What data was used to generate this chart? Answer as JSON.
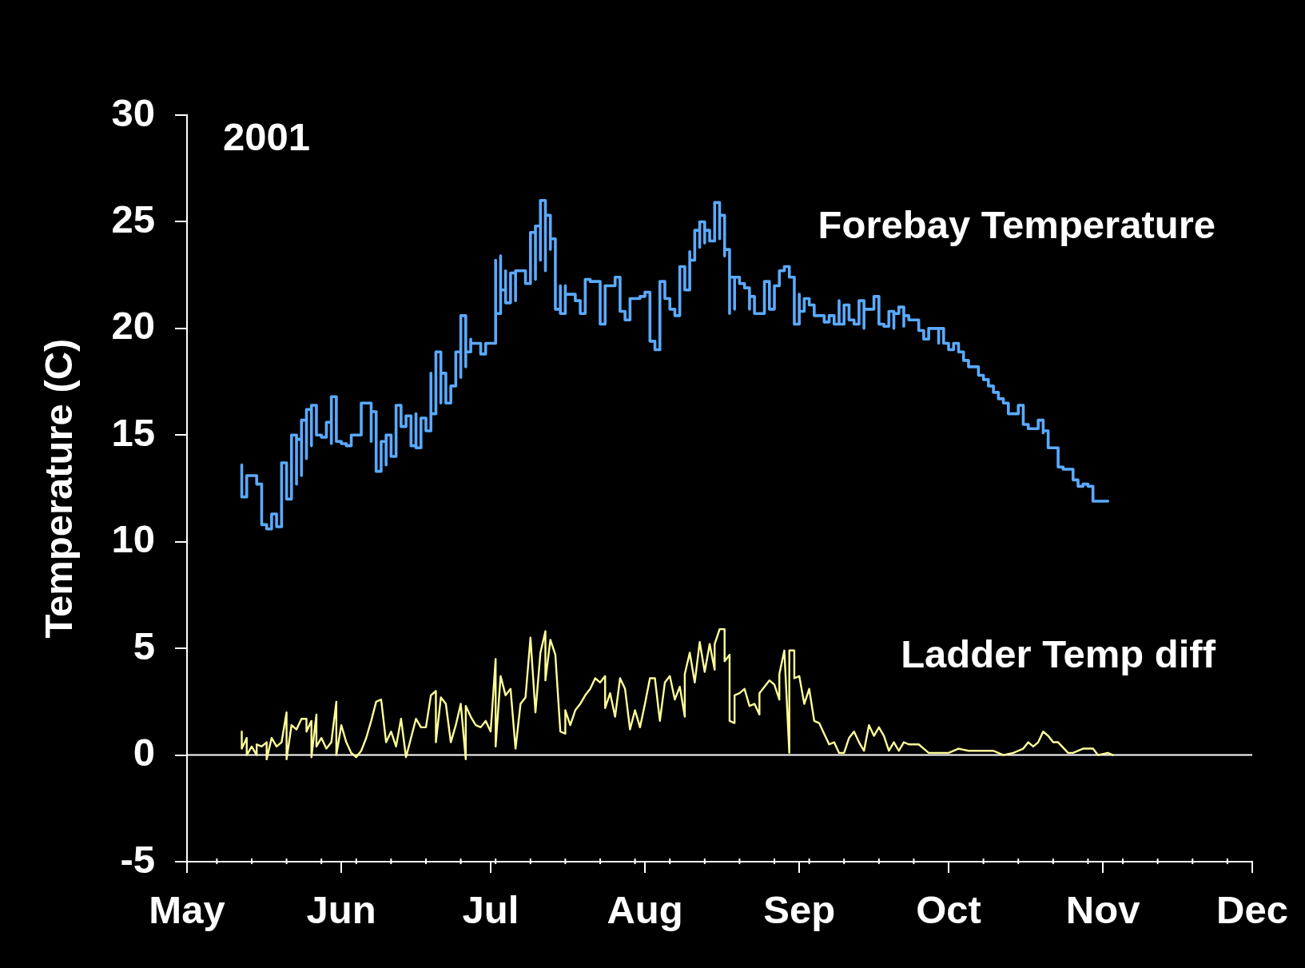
{
  "chart_data": {
    "type": "line",
    "ylabel": "Temperature (C)",
    "annotations": [
      "2001"
    ],
    "xlim": [
      "2001-05-01",
      "2001-12-01"
    ],
    "xticks": [
      {
        "value": "2001-05-01",
        "label": "May"
      },
      {
        "value": "2001-05-07",
        "label": null
      },
      {
        "value": "2001-05-14",
        "label": null
      },
      {
        "value": "2001-05-21",
        "label": null
      },
      {
        "value": "2001-05-28",
        "label": null
      },
      {
        "value": "2001-06-01",
        "label": "Jun"
      },
      {
        "value": "2001-06-04",
        "label": null
      },
      {
        "value": "2001-06-11",
        "label": null
      },
      {
        "value": "2001-06-18",
        "label": null
      },
      {
        "value": "2001-06-25",
        "label": null
      },
      {
        "value": "2001-07-01",
        "label": "Jul"
      },
      {
        "value": "2001-07-02",
        "label": null
      },
      {
        "value": "2001-07-09",
        "label": null
      },
      {
        "value": "2001-07-16",
        "label": null
      },
      {
        "value": "2001-07-23",
        "label": null
      },
      {
        "value": "2001-07-30",
        "label": null
      },
      {
        "value": "2001-08-01",
        "label": "Aug"
      },
      {
        "value": "2001-08-06",
        "label": null
      },
      {
        "value": "2001-08-13",
        "label": null
      },
      {
        "value": "2001-08-20",
        "label": null
      },
      {
        "value": "2001-08-27",
        "label": null
      },
      {
        "value": "2001-09-01",
        "label": "Sep"
      },
      {
        "value": "2001-09-03",
        "label": null
      },
      {
        "value": "2001-09-10",
        "label": null
      },
      {
        "value": "2001-09-17",
        "label": null
      },
      {
        "value": "2001-09-24",
        "label": null
      },
      {
        "value": "2001-10-01",
        "label": "Oct"
      },
      {
        "value": "2001-10-08",
        "label": null
      },
      {
        "value": "2001-10-15",
        "label": null
      },
      {
        "value": "2001-10-22",
        "label": null
      },
      {
        "value": "2001-10-29",
        "label": null
      },
      {
        "value": "2001-11-01",
        "label": "Nov"
      },
      {
        "value": "2001-11-05",
        "label": null
      },
      {
        "value": "2001-11-12",
        "label": null
      },
      {
        "value": "2001-11-19",
        "label": null
      },
      {
        "value": "2001-11-26",
        "label": null
      },
      {
        "value": "2001-12-01",
        "label": "Dec"
      }
    ],
    "ylim": [
      -5,
      30
    ],
    "yticks": [
      -5,
      0,
      5,
      10,
      15,
      20,
      25,
      30
    ],
    "ref_lines": [
      {
        "axis": "y",
        "value": 0,
        "color": "#ffffff"
      }
    ],
    "series": [
      {
        "name": "Forebay Temperature",
        "type": "step",
        "color": "#5aaaff",
        "x": [
          "2001-05-12",
          "2001-05-12",
          "2001-05-13",
          "2001-05-15",
          "2001-05-16",
          "2001-05-16",
          "2001-05-17",
          "2001-05-18",
          "2001-05-19",
          "2001-05-20",
          "2001-05-20",
          "2001-05-21",
          "2001-05-22",
          "2001-05-23",
          "2001-05-23",
          "2001-05-24",
          "2001-05-24",
          "2001-05-25",
          "2001-05-25",
          "2001-05-26",
          "2001-05-26",
          "2001-05-27",
          "2001-05-28",
          "2001-05-29",
          "2001-05-30",
          "2001-05-30",
          "2001-05-31",
          "2001-06-01",
          "2001-06-02",
          "2001-06-03",
          "2001-06-05",
          "2001-06-05",
          "2001-06-07",
          "2001-06-07",
          "2001-06-08",
          "2001-06-09",
          "2001-06-10",
          "2001-06-10",
          "2001-06-11",
          "2001-06-12",
          "2001-06-13",
          "2001-06-14",
          "2001-06-15",
          "2001-06-16",
          "2001-06-16",
          "2001-06-17",
          "2001-06-18",
          "2001-06-19",
          "2001-06-19",
          "2001-06-20",
          "2001-06-20",
          "2001-06-21",
          "2001-06-21",
          "2001-06-22",
          "2001-06-23",
          "2001-06-24",
          "2001-06-25",
          "2001-06-25",
          "2001-06-26",
          "2001-06-26",
          "2001-06-27",
          "2001-06-27",
          "2001-06-29",
          "2001-06-30",
          "2001-07-01",
          "2001-07-02",
          "2001-07-02",
          "2001-07-03",
          "2001-07-03",
          "2001-07-04",
          "2001-07-04",
          "2001-07-05",
          "2001-07-06",
          "2001-07-06",
          "2001-07-08",
          "2001-07-09",
          "2001-07-10",
          "2001-07-10",
          "2001-07-11",
          "2001-07-11",
          "2001-07-12",
          "2001-07-12",
          "2001-07-13",
          "2001-07-13",
          "2001-07-14",
          "2001-07-14",
          "2001-07-15",
          "2001-07-15",
          "2001-07-16",
          "2001-07-16",
          "2001-07-18",
          "2001-07-19",
          "2001-07-20",
          "2001-07-21",
          "2001-07-23",
          "2001-07-24",
          "2001-07-24",
          "2001-07-26",
          "2001-07-27",
          "2001-07-28",
          "2001-07-29",
          "2001-07-31",
          "2001-08-01",
          "2001-08-02",
          "2001-08-03",
          "2001-08-04",
          "2001-08-04",
          "2001-08-05",
          "2001-08-06",
          "2001-08-07",
          "2001-08-08",
          "2001-08-09",
          "2001-08-10",
          "2001-08-10",
          "2001-08-11",
          "2001-08-11",
          "2001-08-12",
          "2001-08-12",
          "2001-08-13",
          "2001-08-13",
          "2001-08-14",
          "2001-08-15",
          "2001-08-16",
          "2001-08-16",
          "2001-08-17",
          "2001-08-17",
          "2001-08-18",
          "2001-08-18",
          "2001-08-19",
          "2001-08-19",
          "2001-08-20",
          "2001-08-21",
          "2001-08-22",
          "2001-08-22",
          "2001-08-23",
          "2001-08-24",
          "2001-08-25",
          "2001-08-25",
          "2001-08-26",
          "2001-08-27",
          "2001-08-27",
          "2001-08-28",
          "2001-08-29",
          "2001-08-30",
          "2001-08-31",
          "2001-08-31",
          "2001-09-01",
          "2001-09-01",
          "2001-09-02",
          "2001-09-03",
          "2001-09-04",
          "2001-09-06",
          "2001-09-07",
          "2001-09-08",
          "2001-09-09",
          "2001-09-09",
          "2001-09-10",
          "2001-09-11",
          "2001-09-12",
          "2001-09-13",
          "2001-09-14",
          "2001-09-14",
          "2001-09-15",
          "2001-09-16",
          "2001-09-17",
          "2001-09-17",
          "2001-09-18",
          "2001-09-19",
          "2001-09-20",
          "2001-09-20",
          "2001-09-21",
          "2001-09-22",
          "2001-09-22",
          "2001-09-23",
          "2001-09-25",
          "2001-09-26",
          "2001-09-27",
          "2001-09-29",
          "2001-09-29",
          "2001-09-30",
          "2001-10-01",
          "2001-10-02",
          "2001-10-03",
          "2001-10-04",
          "2001-10-05",
          "2001-10-06",
          "2001-10-07",
          "2001-10-08",
          "2001-10-09",
          "2001-10-10",
          "2001-10-11",
          "2001-10-12",
          "2001-10-13",
          "2001-10-13",
          "2001-10-15",
          "2001-10-16",
          "2001-10-17",
          "2001-10-19",
          "2001-10-20",
          "2001-10-20",
          "2001-10-21",
          "2001-10-21",
          "2001-10-23",
          "2001-10-24",
          "2001-10-26",
          "2001-10-27",
          "2001-10-28",
          "2001-10-29",
          "2001-10-30",
          "2001-10-31",
          "2001-11-02"
        ],
        "values": [
          13.6,
          12.6,
          12.1,
          13.1,
          12.7,
          11.5,
          10.8,
          10.6,
          11.3,
          10.7,
          11.4,
          13.7,
          12.0,
          15.0,
          12.7,
          14.8,
          13.1,
          15.7,
          13.9,
          16.2,
          14.5,
          16.4,
          15.0,
          14.9,
          15.6,
          14.6,
          16.8,
          14.7,
          14.6,
          14.5,
          15.0,
          15.8,
          16.5,
          14.7,
          16.1,
          13.3,
          14.7,
          13.6,
          15.0,
          14.0,
          16.4,
          15.4,
          15.9,
          14.5,
          16.0,
          14.4,
          15.8,
          15.2,
          17.9,
          16.0,
          18.2,
          18.9,
          16.5,
          17.9,
          16.5,
          17.3,
          18.9,
          17.7,
          20.6,
          18.2,
          18.9,
          19.5,
          19.3,
          18.8,
          19.3,
          19.3,
          23.2,
          20.7,
          23.4,
          21.8,
          22.7,
          21.2,
          22.6,
          21.3,
          22.7,
          22.1,
          24.5,
          22.3,
          24.8,
          23.2,
          26.0,
          22.7,
          25.3,
          23.7,
          24.2,
          21.5,
          20.9,
          22.0,
          20.7,
          22.0,
          21.6,
          21.3,
          20.7,
          22.3,
          22.2,
          20.2,
          22.0,
          22.0,
          22.4,
          20.8,
          20.4,
          21.4,
          21.5,
          21.7,
          19.4,
          19.0,
          20.4,
          22.2,
          21.4,
          20.9,
          20.6,
          22.9,
          21.8,
          23.6,
          23.2,
          24.4,
          24.6,
          23.8,
          25.0,
          24.0,
          24.6,
          24.1,
          25.9,
          24.2,
          25.3,
          23.4,
          23.7,
          20.7,
          22.4,
          20.9,
          22.4,
          22.1,
          21.9,
          20.9,
          21.5,
          20.7,
          20.7,
          21.8,
          22.2,
          20.9,
          21.8,
          22.0,
          22.7,
          22.9,
          22.4,
          21.1,
          20.2,
          21.6,
          20.8,
          21.4,
          21.1,
          20.6,
          20.3,
          20.6,
          20.2,
          21.3,
          20.2,
          21.1,
          20.4,
          20.2,
          21.3,
          20.0,
          20.9,
          20.9,
          21.5,
          20.4,
          20.2,
          20.1,
          20.8,
          20.0,
          20.7,
          21.0,
          20.1,
          20.6,
          20.4,
          19.9,
          19.5,
          20.0,
          19.3,
          20.0,
          19.3,
          19.0,
          19.3,
          18.9,
          18.5,
          18.2,
          18.2,
          17.8,
          17.6,
          17.3,
          17.0,
          16.7,
          16.5,
          16.1,
          16.0,
          16.4,
          15.5,
          15.3,
          15.7,
          15.1,
          15.2,
          14.7,
          14.4,
          13.5,
          13.4,
          12.9,
          12.6,
          12.7,
          12.6,
          11.9,
          11.9
        ]
      },
      {
        "name": "Ladder Temp diff",
        "color": "#ffff99",
        "x": [
          "2001-05-12",
          "2001-05-12",
          "2001-05-13",
          "2001-05-13",
          "2001-05-14",
          "2001-05-15",
          "2001-05-15",
          "2001-05-16",
          "2001-05-17",
          "2001-05-17",
          "2001-05-18",
          "2001-05-19",
          "2001-05-20",
          "2001-05-21",
          "2001-05-21",
          "2001-05-22",
          "2001-05-23",
          "2001-05-24",
          "2001-05-25",
          "2001-05-25",
          "2001-05-26",
          "2001-05-26",
          "2001-05-27",
          "2001-05-27",
          "2001-05-28",
          "2001-05-29",
          "2001-05-30",
          "2001-05-31",
          "2001-05-31",
          "2001-06-01",
          "2001-06-02",
          "2001-06-03",
          "2001-06-04",
          "2001-06-05",
          "2001-06-06",
          "2001-06-07",
          "2001-06-08",
          "2001-06-09",
          "2001-06-10",
          "2001-06-11",
          "2001-06-12",
          "2001-06-13",
          "2001-06-14",
          "2001-06-15",
          "2001-06-16",
          "2001-06-17",
          "2001-06-18",
          "2001-06-19",
          "2001-06-20",
          "2001-06-20",
          "2001-06-21",
          "2001-06-22",
          "2001-06-23",
          "2001-06-24",
          "2001-06-25",
          "2001-06-26",
          "2001-06-26",
          "2001-06-27",
          "2001-06-28",
          "2001-06-29",
          "2001-06-30",
          "2001-07-01",
          "2001-07-02",
          "2001-07-02",
          "2001-07-03",
          "2001-07-04",
          "2001-07-05",
          "2001-07-06",
          "2001-07-07",
          "2001-07-08",
          "2001-07-09",
          "2001-07-10",
          "2001-07-11",
          "2001-07-12",
          "2001-07-12",
          "2001-07-13",
          "2001-07-14",
          "2001-07-15",
          "2001-07-16",
          "2001-07-16",
          "2001-07-17",
          "2001-07-18",
          "2001-07-19",
          "2001-07-20",
          "2001-07-21",
          "2001-07-22",
          "2001-07-23",
          "2001-07-24",
          "2001-07-24",
          "2001-07-25",
          "2001-07-26",
          "2001-07-27",
          "2001-07-28",
          "2001-07-29",
          "2001-07-30",
          "2001-07-31",
          "2001-08-01",
          "2001-08-02",
          "2001-08-03",
          "2001-08-04",
          "2001-08-05",
          "2001-08-06",
          "2001-08-07",
          "2001-08-08",
          "2001-08-09",
          "2001-08-09",
          "2001-08-10",
          "2001-08-11",
          "2001-08-12",
          "2001-08-13",
          "2001-08-14",
          "2001-08-15",
          "2001-08-15",
          "2001-08-16",
          "2001-08-17",
          "2001-08-17",
          "2001-08-18",
          "2001-08-18",
          "2001-08-19",
          "2001-08-19",
          "2001-08-20",
          "2001-08-21",
          "2001-08-22",
          "2001-08-23",
          "2001-08-24",
          "2001-08-24",
          "2001-08-25",
          "2001-08-26",
          "2001-08-27",
          "2001-08-28",
          "2001-08-28",
          "2001-08-29",
          "2001-08-30",
          "2001-08-30",
          "2001-08-31",
          "2001-08-31",
          "2001-09-01",
          "2001-09-02",
          "2001-09-03",
          "2001-09-04",
          "2001-09-05",
          "2001-09-06",
          "2001-09-07",
          "2001-09-08",
          "2001-09-09",
          "2001-09-10",
          "2001-09-11",
          "2001-09-12",
          "2001-09-13",
          "2001-09-14",
          "2001-09-15",
          "2001-09-16",
          "2001-09-17",
          "2001-09-18",
          "2001-09-19",
          "2001-09-20",
          "2001-09-21",
          "2001-09-22",
          "2001-09-23",
          "2001-09-25",
          "2001-09-26",
          "2001-09-27",
          "2001-09-29",
          "2001-10-01",
          "2001-10-03",
          "2001-10-05",
          "2001-10-07",
          "2001-10-10",
          "2001-10-12",
          "2001-10-14",
          "2001-10-16",
          "2001-10-17",
          "2001-10-18",
          "2001-10-19",
          "2001-10-20",
          "2001-10-21",
          "2001-10-22",
          "2001-10-23",
          "2001-10-25",
          "2001-10-26",
          "2001-10-28",
          "2001-10-30",
          "2001-10-31",
          "2001-11-02",
          "2001-11-03"
        ],
        "values": [
          1.1,
          0.3,
          0.8,
          0.0,
          0.4,
          0.0,
          0.5,
          0.4,
          0.6,
          -0.2,
          0.8,
          0.4,
          0.6,
          2.0,
          -0.2,
          1.4,
          1.2,
          1.7,
          1.7,
          1.1,
          1.6,
          -0.1,
          1.9,
          0.4,
          0.8,
          0.3,
          0.6,
          2.5,
          0.0,
          1.4,
          0.6,
          0.1,
          -0.1,
          0.2,
          0.8,
          1.6,
          2.5,
          2.6,
          0.6,
          1.1,
          0.4,
          1.7,
          -0.1,
          0.8,
          1.7,
          1.3,
          1.3,
          2.8,
          3.0,
          0.6,
          2.7,
          2.4,
          0.6,
          1.4,
          2.4,
          -0.2,
          2.3,
          1.8,
          1.4,
          1.3,
          1.6,
          1.1,
          4.5,
          0.4,
          3.7,
          2.8,
          3.1,
          0.3,
          2.4,
          2.7,
          5.5,
          2.0,
          4.8,
          5.8,
          3.5,
          5.4,
          4.7,
          1.1,
          1.0,
          2.1,
          1.4,
          2.1,
          2.4,
          2.8,
          3.1,
          3.6,
          3.4,
          3.7,
          2.2,
          2.9,
          1.8,
          3.6,
          3.1,
          1.2,
          2.1,
          1.3,
          2.4,
          3.6,
          3.6,
          1.6,
          3.4,
          3.7,
          2.6,
          3.2,
          1.8,
          3.8,
          4.8,
          3.4,
          5.3,
          3.9,
          5.2,
          4.0,
          5.2,
          5.9,
          5.9,
          4.4,
          4.7,
          1.6,
          1.5,
          2.8,
          2.9,
          3.1,
          2.3,
          2.4,
          1.9,
          2.9,
          3.2,
          3.5,
          3.3,
          2.6,
          3.8,
          4.9,
          0.1,
          4.9,
          4.9,
          3.6,
          3.7,
          2.4,
          3.1,
          1.6,
          1.5,
          1.0,
          0.5,
          0.6,
          0.1,
          0.1,
          0.8,
          1.1,
          0.6,
          0.2,
          1.4,
          0.9,
          1.3,
          0.9,
          0.2,
          0.6,
          0.2,
          0.6,
          0.5,
          0.5,
          0.3,
          0.1,
          0.1,
          0.1,
          0.3,
          0.2,
          0.2,
          0.2,
          0.0,
          0.1,
          0.3,
          0.6,
          0.4,
          0.6,
          1.1,
          0.9,
          0.6,
          0.6,
          0.1,
          0.1,
          0.3,
          0.3,
          0.0,
          0.1,
          0.0
        ]
      }
    ]
  }
}
